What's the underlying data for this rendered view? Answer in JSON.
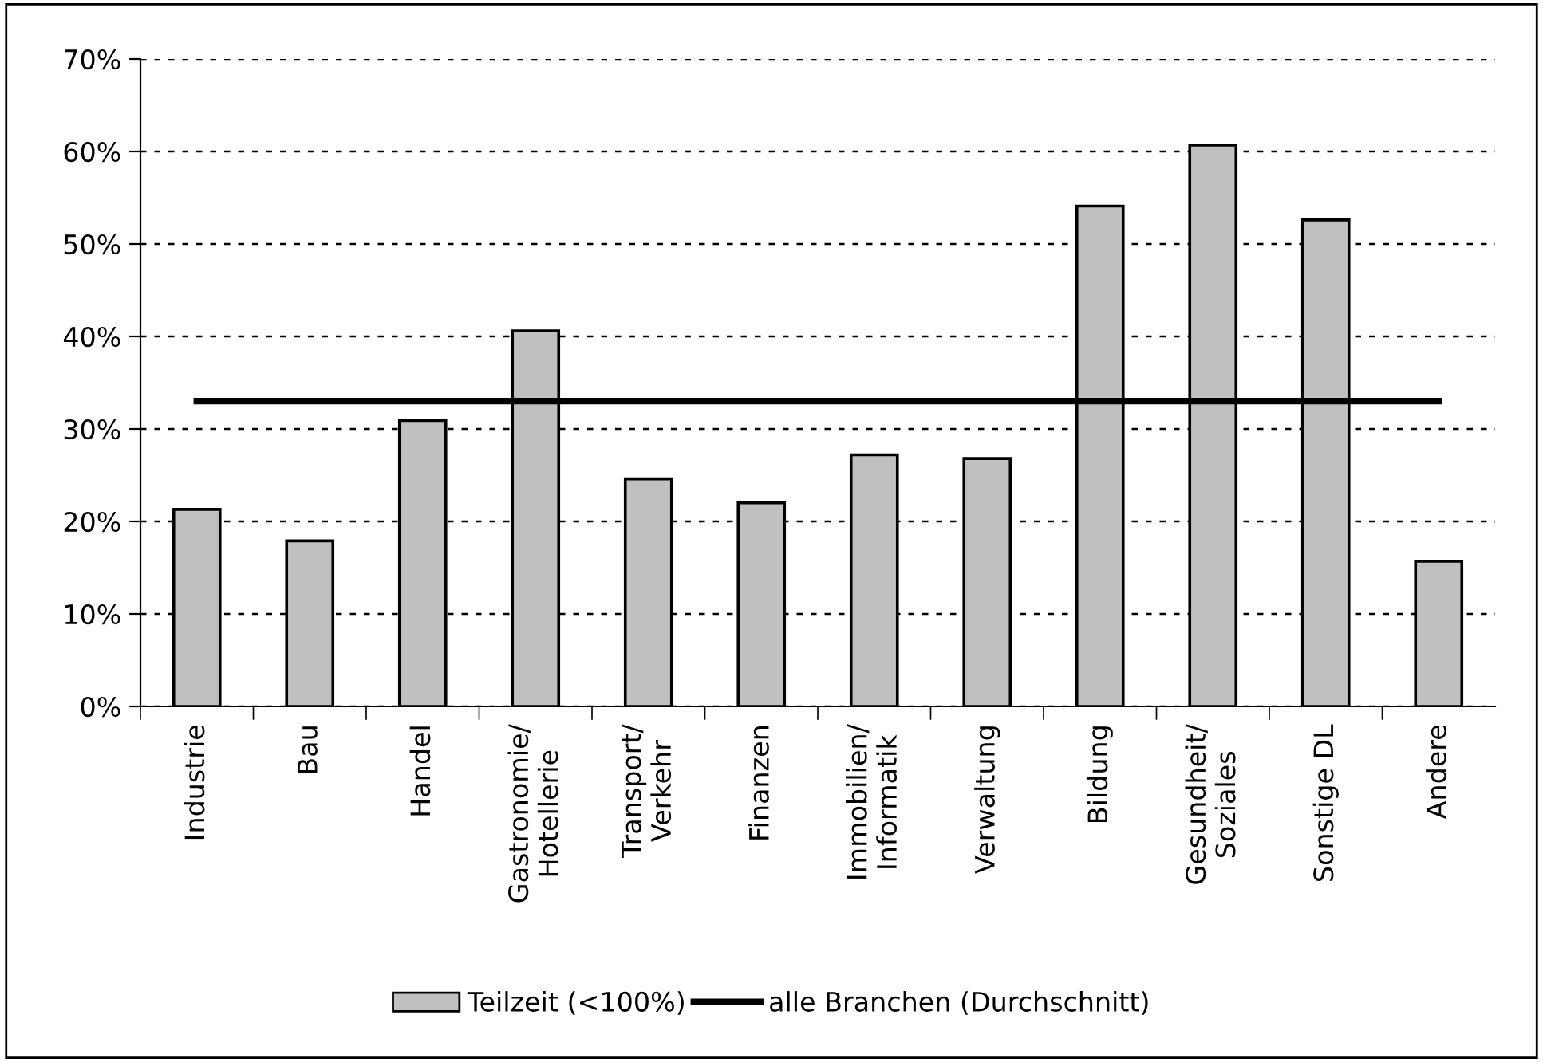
{
  "chart_data": {
    "type": "bar",
    "categories": [
      "Industrie",
      "Bau",
      "Handel",
      "Gastronomie/\nHotellerie",
      "Transport/\nVerkehr",
      "Finanzen",
      "Immobilien/\nInformatik",
      "Verwaltung",
      "Bildung",
      "Gesundheit/\nSoziales",
      "Sonstige DL",
      "Andere"
    ],
    "series": [
      {
        "name": "Teilzeit (<100%)",
        "color": "#c0c0c0",
        "values": [
          21.3,
          17.9,
          30.9,
          40.6,
          24.6,
          22.0,
          27.2,
          26.8,
          54.1,
          60.7,
          52.6,
          15.7
        ]
      },
      {
        "name": "alle Branchen (Durchschnitt)",
        "type": "line",
        "color": "#000000",
        "values": [
          33.0,
          33.0,
          33.0,
          33.0,
          33.0,
          33.0,
          33.0,
          33.0,
          33.0,
          33.0,
          33.0,
          33.0
        ]
      }
    ],
    "ylim": [
      0,
      70
    ],
    "yticks": [
      {
        "value": 0,
        "label": "0%"
      },
      {
        "value": 10,
        "label": "10%"
      },
      {
        "value": 20,
        "label": "20%"
      },
      {
        "value": 30,
        "label": "30%"
      },
      {
        "value": 40,
        "label": "40%"
      },
      {
        "value": 50,
        "label": "50%"
      },
      {
        "value": 60,
        "label": "60%"
      },
      {
        "value": 70,
        "label": "70%"
      }
    ],
    "grid": "y",
    "legend": "bottom"
  }
}
